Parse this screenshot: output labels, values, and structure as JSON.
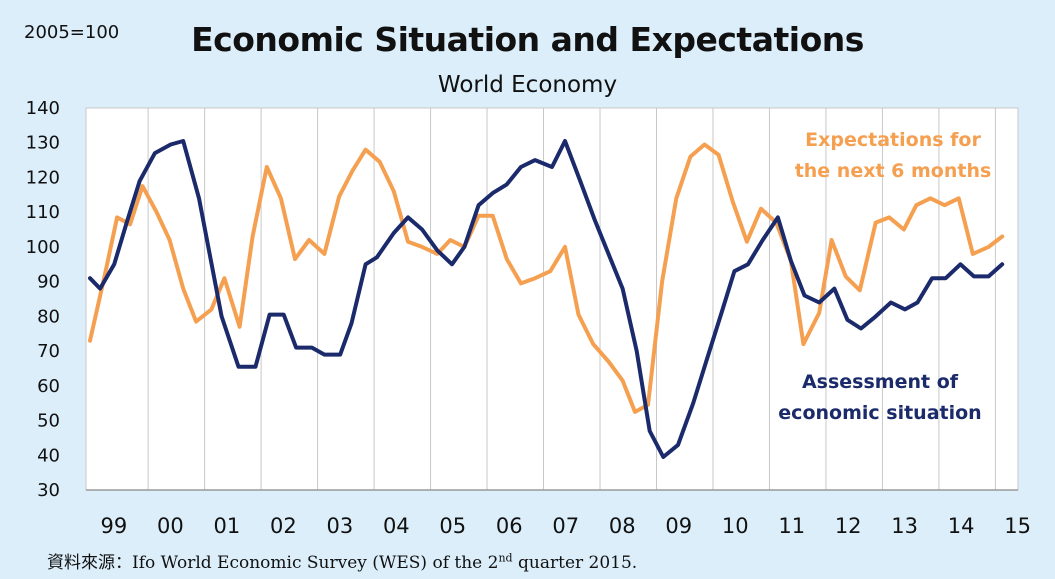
{
  "chart_data": {
    "type": "line",
    "title": "Economic Situation and Expectations",
    "subtitle": "World Economy",
    "base_note": "2005=100",
    "ylim": [
      30,
      140
    ],
    "yticks": [
      30,
      40,
      50,
      60,
      70,
      80,
      90,
      100,
      110,
      120,
      130,
      140
    ],
    "x_labels": [
      "99",
      "00",
      "01",
      "02",
      "03",
      "04",
      "05",
      "06",
      "07",
      "08",
      "09",
      "10",
      "11",
      "12",
      "13",
      "14",
      "15"
    ],
    "series": [
      {
        "name": "Assessment of economic situation",
        "label_lines": [
          "Assessment of",
          "economic situation"
        ],
        "color": "#1b2a6b",
        "points": [
          [
            1998.97,
            91
          ],
          [
            1999.15,
            88
          ],
          [
            1999.4,
            95
          ],
          [
            1999.62,
            107
          ],
          [
            1999.85,
            119
          ],
          [
            2000.12,
            127
          ],
          [
            2000.4,
            129.5
          ],
          [
            2000.62,
            130.5
          ],
          [
            2000.9,
            114
          ],
          [
            2001.3,
            80
          ],
          [
            2001.6,
            65.5
          ],
          [
            2001.9,
            65.5
          ],
          [
            2002.15,
            80.5
          ],
          [
            2002.4,
            80.5
          ],
          [
            2002.62,
            71
          ],
          [
            2002.9,
            71
          ],
          [
            2003.12,
            69
          ],
          [
            2003.4,
            69
          ],
          [
            2003.6,
            78
          ],
          [
            2003.85,
            95
          ],
          [
            2004.05,
            97
          ],
          [
            2004.35,
            104
          ],
          [
            2004.6,
            108.5
          ],
          [
            2004.85,
            105
          ],
          [
            2005.12,
            99
          ],
          [
            2005.38,
            95
          ],
          [
            2005.6,
            100
          ],
          [
            2005.85,
            112
          ],
          [
            2006.1,
            115.5
          ],
          [
            2006.35,
            118
          ],
          [
            2006.6,
            123
          ],
          [
            2006.85,
            125
          ],
          [
            2007.15,
            123
          ],
          [
            2007.38,
            130.5
          ],
          [
            2007.65,
            119
          ],
          [
            2007.9,
            108
          ],
          [
            2008.15,
            98
          ],
          [
            2008.4,
            88
          ],
          [
            2008.65,
            70
          ],
          [
            2008.88,
            47
          ],
          [
            2009.12,
            39.5
          ],
          [
            2009.38,
            43
          ],
          [
            2009.65,
            55
          ],
          [
            2009.9,
            68
          ],
          [
            2010.15,
            81
          ],
          [
            2010.38,
            93
          ],
          [
            2010.62,
            95
          ],
          [
            2010.88,
            102
          ],
          [
            2011.15,
            108.5
          ],
          [
            2011.38,
            96
          ],
          [
            2011.62,
            86
          ],
          [
            2011.88,
            84
          ],
          [
            2012.15,
            88
          ],
          [
            2012.38,
            79
          ],
          [
            2012.62,
            76.5
          ],
          [
            2012.88,
            80
          ],
          [
            2013.15,
            84
          ],
          [
            2013.4,
            82
          ],
          [
            2013.62,
            84
          ],
          [
            2013.88,
            91
          ],
          [
            2014.12,
            91
          ],
          [
            2014.38,
            95
          ],
          [
            2014.62,
            91.5
          ],
          [
            2014.88,
            91.5
          ],
          [
            2015.12,
            95
          ]
        ]
      },
      {
        "name": "Expectations for the next 6 months",
        "label_lines": [
          "Expectations for",
          "the next 6 months"
        ],
        "color": "#f5a050",
        "points": [
          [
            1998.97,
            73
          ],
          [
            1999.22,
            91
          ],
          [
            1999.45,
            108.5
          ],
          [
            1999.68,
            106.5
          ],
          [
            1999.9,
            117.5
          ],
          [
            2000.15,
            110
          ],
          [
            2000.38,
            102
          ],
          [
            2000.62,
            88
          ],
          [
            2000.85,
            78.5
          ],
          [
            2001.12,
            82
          ],
          [
            2001.35,
            91
          ],
          [
            2001.62,
            77
          ],
          [
            2001.85,
            103
          ],
          [
            2002.1,
            123
          ],
          [
            2002.35,
            114
          ],
          [
            2002.6,
            96.5
          ],
          [
            2002.85,
            102
          ],
          [
            2003.12,
            98
          ],
          [
            2003.38,
            114.5
          ],
          [
            2003.62,
            122
          ],
          [
            2003.85,
            128
          ],
          [
            2004.1,
            124.5
          ],
          [
            2004.35,
            116
          ],
          [
            2004.6,
            101.5
          ],
          [
            2004.85,
            100
          ],
          [
            2005.12,
            98
          ],
          [
            2005.35,
            102
          ],
          [
            2005.6,
            100
          ],
          [
            2005.85,
            109
          ],
          [
            2006.1,
            109
          ],
          [
            2006.35,
            96.5
          ],
          [
            2006.6,
            89.5
          ],
          [
            2006.85,
            91
          ],
          [
            2007.12,
            93
          ],
          [
            2007.38,
            100
          ],
          [
            2007.62,
            80.5
          ],
          [
            2007.88,
            72
          ],
          [
            2008.15,
            67
          ],
          [
            2008.4,
            61.5
          ],
          [
            2008.62,
            52.5
          ],
          [
            2008.85,
            54.5
          ],
          [
            2009.1,
            90
          ],
          [
            2009.35,
            114
          ],
          [
            2009.6,
            126
          ],
          [
            2009.85,
            129.5
          ],
          [
            2010.1,
            126.5
          ],
          [
            2010.35,
            113
          ],
          [
            2010.6,
            101.5
          ],
          [
            2010.85,
            111
          ],
          [
            2011.12,
            107
          ],
          [
            2011.38,
            96
          ],
          [
            2011.6,
            72
          ],
          [
            2011.88,
            81
          ],
          [
            2012.1,
            102
          ],
          [
            2012.35,
            91.5
          ],
          [
            2012.6,
            87.5
          ],
          [
            2012.88,
            107
          ],
          [
            2013.12,
            108.5
          ],
          [
            2013.38,
            105
          ],
          [
            2013.6,
            112
          ],
          [
            2013.85,
            114
          ],
          [
            2014.1,
            112
          ],
          [
            2014.35,
            114
          ],
          [
            2014.6,
            98
          ],
          [
            2014.88,
            100
          ],
          [
            2015.12,
            103
          ]
        ]
      }
    ]
  },
  "source_note": {
    "prefix": "資料來源：Ifo World Economic Survey (WES) of the 2",
    "superscript": "nd",
    "suffix": " quarter 2015."
  }
}
